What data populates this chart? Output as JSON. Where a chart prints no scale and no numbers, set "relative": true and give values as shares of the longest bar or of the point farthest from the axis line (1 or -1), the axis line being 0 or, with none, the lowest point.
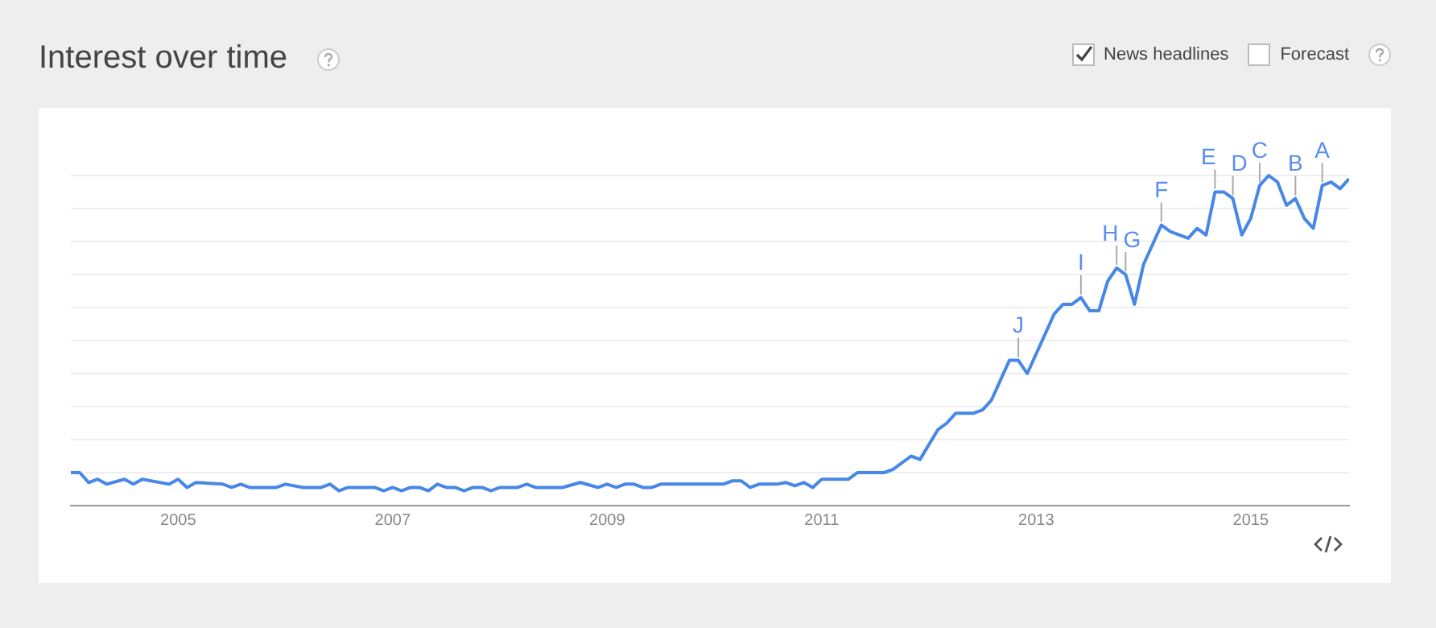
{
  "chart_data": {
    "type": "line",
    "title": "Interest over time",
    "relative": true,
    "grid": "y",
    "legend": false,
    "marker": "none",
    "line_style": "solid",
    "xlim": [
      "2004-01",
      "2015-12"
    ],
    "xticks": [
      "2005",
      "2007",
      "2009",
      "2011",
      "2013",
      "2015"
    ],
    "x": [
      "2004-01",
      "2004-02",
      "2004-03",
      "2004-04",
      "2004-05",
      "2004-07",
      "2004-08",
      "2004-09",
      "2004-12",
      "2005-01",
      "2005-02",
      "2005-03",
      "2005-06",
      "2005-07",
      "2005-08",
      "2005-09",
      "2005-12",
      "2006-01",
      "2006-03",
      "2006-05",
      "2006-06",
      "2006-07",
      "2006-08",
      "2006-11",
      "2006-12",
      "2007-01",
      "2007-02",
      "2007-03",
      "2007-04",
      "2007-05",
      "2007-06",
      "2007-07",
      "2007-08",
      "2007-09",
      "2007-10",
      "2007-11",
      "2007-12",
      "2008-01",
      "2008-03",
      "2008-04",
      "2008-05",
      "2008-08",
      "2008-10",
      "2008-12",
      "2009-01",
      "2009-02",
      "2009-03",
      "2009-04",
      "2009-05",
      "2009-06",
      "2009-07",
      "2010-02",
      "2010-03",
      "2010-04",
      "2010-05",
      "2010-06",
      "2010-08",
      "2010-09",
      "2010-10",
      "2010-11",
      "2010-12",
      "2011-01",
      "2011-04",
      "2011-05",
      "2011-08",
      "2011-09",
      "2011-11",
      "2011-12",
      "2012-02",
      "2012-03",
      "2012-04",
      "2012-06",
      "2012-07",
      "2012-08",
      "2012-10",
      "2012-11",
      "2012-12",
      "2013-03",
      "2013-04",
      "2013-05",
      "2013-06",
      "2013-07",
      "2013-08",
      "2013-09",
      "2013-10",
      "2013-11",
      "2013-12",
      "2014-01",
      "2014-03",
      "2014-04",
      "2014-06",
      "2014-07",
      "2014-08",
      "2014-09",
      "2014-10",
      "2014-11",
      "2014-12",
      "2015-01",
      "2015-02",
      "2015-03",
      "2015-04",
      "2015-05",
      "2015-06",
      "2015-07",
      "2015-08",
      "2015-09",
      "2015-10",
      "2015-11",
      "2015-12"
    ],
    "series": [
      {
        "color": "#4787e7",
        "values": [
          0.1,
          0.1,
          0.07,
          0.08,
          0.065,
          0.08,
          0.065,
          0.08,
          0.065,
          0.08,
          0.055,
          0.07,
          0.065,
          0.055,
          0.065,
          0.055,
          0.055,
          0.065,
          0.055,
          0.055,
          0.065,
          0.045,
          0.055,
          0.055,
          0.045,
          0.055,
          0.045,
          0.055,
          0.055,
          0.045,
          0.065,
          0.055,
          0.055,
          0.045,
          0.055,
          0.055,
          0.045,
          0.055,
          0.055,
          0.065,
          0.055,
          0.055,
          0.07,
          0.055,
          0.065,
          0.055,
          0.065,
          0.065,
          0.055,
          0.055,
          0.065,
          0.065,
          0.075,
          0.075,
          0.055,
          0.065,
          0.065,
          0.07,
          0.06,
          0.07,
          0.055,
          0.08,
          0.08,
          0.1,
          0.1,
          0.11,
          0.15,
          0.14,
          0.23,
          0.25,
          0.28,
          0.28,
          0.29,
          0.32,
          0.44,
          0.44,
          0.4,
          0.58,
          0.61,
          0.61,
          0.63,
          0.59,
          0.59,
          0.68,
          0.72,
          0.7,
          0.61,
          0.73,
          0.85,
          0.83,
          0.81,
          0.84,
          0.82,
          0.95,
          0.95,
          0.93,
          0.82,
          0.87,
          0.97,
          1,
          0.98,
          0.91,
          0.93,
          0.87,
          0.84,
          0.97,
          0.98,
          0.96,
          0.99
        ]
      }
    ],
    "annotations": [
      "News headlines",
      "Forecast",
      {
        "text": "J",
        "x": "2012-11",
        "y": 0.44
      },
      {
        "text": "I",
        "x": "2013-06",
        "y": 0.63
      },
      {
        "text": "H",
        "x": "2013-10",
        "y": 0.72
      },
      {
        "text": "G",
        "x": "2013-11",
        "y": 0.7
      },
      {
        "text": "F",
        "x": "2014-03",
        "y": 0.85
      },
      {
        "text": "E",
        "x": "2014-09",
        "y": 0.95
      },
      {
        "text": "D",
        "x": "2014-11",
        "y": 0.93
      },
      {
        "text": "C",
        "x": "2015-02",
        "y": 0.97
      },
      {
        "text": "B",
        "x": "2015-06",
        "y": 0.93
      },
      {
        "text": "A",
        "x": "2015-09",
        "y": 0.97
      }
    ]
  }
}
